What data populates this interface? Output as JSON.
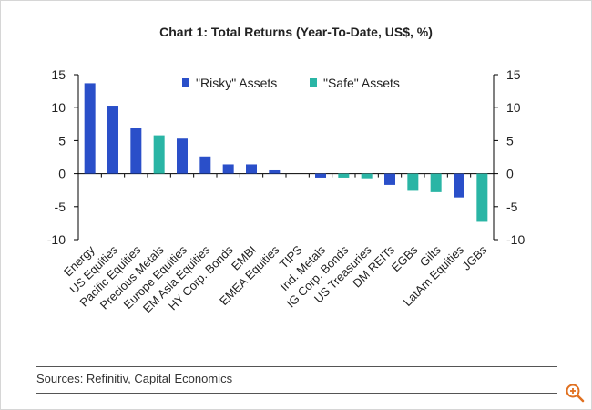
{
  "title": "Chart 1: Total Returns (Year-To-Date, US$, %)",
  "source": "Sources: Refinitiv, Capital Economics",
  "colors": {
    "risky": "#2a4fc9",
    "safe": "#2ab5a5",
    "axis": "#000000",
    "text": "#222222"
  },
  "zoom_icon": "zoom-in-icon",
  "chart_data": {
    "type": "bar",
    "title": "Chart 1: Total Returns (Year-To-Date, US$, %)",
    "xlabel": "",
    "ylabel": "",
    "ylim": [
      -10,
      15
    ],
    "yticks": [
      15,
      10,
      5,
      0,
      -5,
      -10
    ],
    "legend": [
      {
        "name": "\"Risky\" Assets",
        "key": "risky"
      },
      {
        "name": "\"Safe\" Assets",
        "key": "safe"
      }
    ],
    "categories": [
      "Energy",
      "US Equities",
      "Pacific Equities",
      "Precious Metals",
      "Europe Equities",
      "EM Asia Equities",
      "HY Corp. Bonds",
      "EMBI",
      "EMEA Equities",
      "TIPS",
      "Ind. Metals",
      "IG Corp. Bonds",
      "US Treasuries",
      "DM REITs",
      "EGBs",
      "Gilts",
      "LatAm Equities",
      "JGBs"
    ],
    "values": [
      13.7,
      10.3,
      6.9,
      5.8,
      5.3,
      2.6,
      1.4,
      1.4,
      0.5,
      0.0,
      -0.6,
      -0.6,
      -0.7,
      -1.7,
      -2.6,
      -2.8,
      -3.6,
      -7.3
    ],
    "groups": [
      "risky",
      "risky",
      "risky",
      "safe",
      "risky",
      "risky",
      "risky",
      "risky",
      "risky",
      "safe",
      "risky",
      "safe",
      "safe",
      "risky",
      "safe",
      "safe",
      "risky",
      "safe"
    ]
  }
}
